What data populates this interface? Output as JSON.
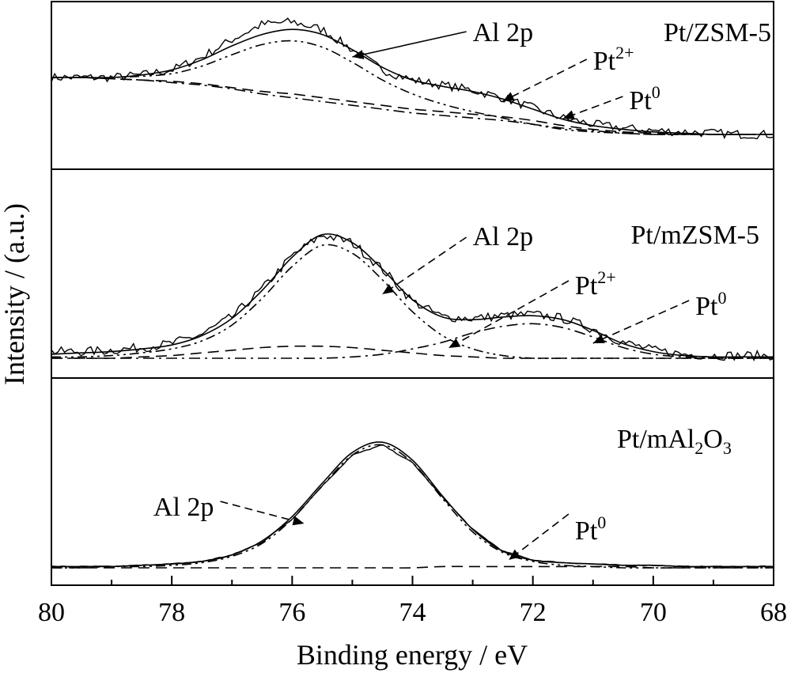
{
  "chart_data": {
    "type": "line",
    "xlabel": "Binding energy / eV",
    "ylabel": "Intensity / (a.u.)",
    "x_range": [
      80,
      68
    ],
    "x_ticks": [
      "80",
      "78",
      "76",
      "74",
      "72",
      "70",
      "68"
    ],
    "x_tick_values": [
      80,
      78,
      76,
      74,
      72,
      70,
      68
    ],
    "panels": [
      {
        "label": "Pt/ZSM-5",
        "label_main": "Pt/ZSM-5",
        "annotations": [
          {
            "base": "Al 2p",
            "sup": "",
            "x_eV": 75.0,
            "label_x_eV": 73.0
          },
          {
            "base": "Pt",
            "sup": "2+",
            "x_eV": 72.5,
            "label_x_eV": 71.0
          },
          {
            "base": "Pt",
            "sup": "0",
            "x_eV": 71.5,
            "label_x_eV": 70.4
          }
        ],
        "series": [
          {
            "role": "experimental",
            "style": "noisy",
            "values": [
              0.5,
              0.5,
              0.5,
              0.52,
              0.56,
              0.66,
              0.8,
              0.92,
              0.94,
              0.88,
              0.72,
              0.56,
              0.48,
              0.44,
              0.4,
              0.34,
              0.26,
              0.18,
              0.13,
              0.1,
              0.08,
              0.07,
              0.06,
              0.05,
              0.05
            ]
          },
          {
            "role": "envelope",
            "style": "solid",
            "values": [
              0.5,
              0.5,
              0.5,
              0.52,
              0.56,
              0.64,
              0.75,
              0.84,
              0.88,
              0.84,
              0.72,
              0.58,
              0.48,
              0.43,
              0.39,
              0.33,
              0.25,
              0.17,
              0.12,
              0.09,
              0.07,
              0.06,
              0.05,
              0.05,
              0.05
            ]
          },
          {
            "role": "Al 2p",
            "style": "dash-dot-dot",
            "values": [
              0.5,
              0.5,
              0.5,
              0.51,
              0.53,
              0.59,
              0.68,
              0.76,
              0.79,
              0.74,
              0.62,
              0.48,
              0.37,
              0.29,
              0.23,
              0.18,
              0.13,
              0.09,
              0.07,
              0.06,
              0.05,
              0.05,
              0.05,
              0.05,
              0.05
            ]
          },
          {
            "role": "Pt2+",
            "style": "dashed",
            "values": [
              0.5,
              0.5,
              0.49,
              0.48,
              0.47,
              0.45,
              0.42,
              0.39,
              0.37,
              0.34,
              0.31,
              0.28,
              0.25,
              0.23,
              0.21,
              0.19,
              0.16,
              0.12,
              0.09,
              0.07,
              0.06,
              0.05,
              0.05,
              0.05,
              0.05
            ]
          },
          {
            "role": "Pt0",
            "style": "dash-dot",
            "values": [
              0.5,
              0.5,
              0.49,
              0.48,
              0.46,
              0.44,
              0.41,
              0.37,
              0.34,
              0.31,
              0.28,
              0.25,
              0.22,
              0.2,
              0.18,
              0.16,
              0.13,
              0.1,
              0.08,
              0.06,
              0.05,
              0.05,
              0.05,
              0.05,
              0.05
            ]
          }
        ]
      },
      {
        "label": "Pt/mZSM-5",
        "label_main": "Pt/mZSM-5",
        "annotations": [
          {
            "base": "Al 2p",
            "sup": "",
            "x_eV": 74.5,
            "label_x_eV": 73.0
          },
          {
            "base": "Pt",
            "sup": "2+",
            "x_eV": 73.4,
            "label_x_eV": 71.3
          },
          {
            "base": "Pt",
            "sup": "0",
            "x_eV": 71.0,
            "label_x_eV": 69.3
          }
        ],
        "series": [
          {
            "role": "experimental",
            "style": "noisy",
            "values": [
              0.08,
              0.08,
              0.09,
              0.11,
              0.14,
              0.21,
              0.34,
              0.55,
              0.8,
              0.96,
              0.9,
              0.7,
              0.46,
              0.34,
              0.33,
              0.35,
              0.36,
              0.33,
              0.25,
              0.15,
              0.09,
              0.06,
              0.05,
              0.05,
              0.05
            ]
          },
          {
            "role": "envelope",
            "style": "solid",
            "values": [
              0.06,
              0.07,
              0.08,
              0.1,
              0.13,
              0.2,
              0.33,
              0.54,
              0.79,
              0.96,
              0.9,
              0.7,
              0.47,
              0.34,
              0.32,
              0.34,
              0.35,
              0.32,
              0.24,
              0.14,
              0.08,
              0.05,
              0.04,
              0.04,
              0.04
            ]
          },
          {
            "role": "Al 2p",
            "style": "dash-dot-dot",
            "values": [
              0.04,
              0.04,
              0.05,
              0.07,
              0.1,
              0.16,
              0.28,
              0.48,
              0.72,
              0.88,
              0.82,
              0.62,
              0.38,
              0.2,
              0.1,
              0.05,
              0.03,
              0.03,
              0.03,
              0.03,
              0.03,
              0.03,
              0.03,
              0.03,
              0.03
            ]
          },
          {
            "role": "Pt2+",
            "style": "dashed",
            "values": [
              0.03,
              0.03,
              0.03,
              0.04,
              0.05,
              0.07,
              0.09,
              0.11,
              0.12,
              0.12,
              0.11,
              0.09,
              0.07,
              0.05,
              0.04,
              0.03,
              0.03,
              0.03,
              0.03,
              0.03,
              0.03,
              0.03,
              0.03,
              0.03,
              0.03
            ]
          },
          {
            "role": "Pt0",
            "style": "dash-dot",
            "values": [
              0.03,
              0.03,
              0.03,
              0.03,
              0.03,
              0.03,
              0.03,
              0.03,
              0.03,
              0.03,
              0.04,
              0.06,
              0.1,
              0.15,
              0.22,
              0.27,
              0.29,
              0.26,
              0.19,
              0.11,
              0.06,
              0.04,
              0.03,
              0.03,
              0.03
            ]
          }
        ]
      },
      {
        "label": "Pt/mAl2O3",
        "label_main": "Pt/mAl",
        "label_sub1": "2",
        "label_mid": "O",
        "label_sub2": "3",
        "annotations": [
          {
            "base": "Al 2p",
            "sup": "",
            "x_eV": 75.8,
            "label_x_eV": 77.3
          },
          {
            "base": "Pt",
            "sup": "0",
            "x_eV": 72.4,
            "label_x_eV": 71.3
          }
        ],
        "series": [
          {
            "role": "experimental",
            "style": "noisy",
            "values": [
              0.01,
              0.01,
              0.01,
              0.02,
              0.03,
              0.05,
              0.1,
              0.2,
              0.38,
              0.64,
              0.88,
              0.96,
              0.82,
              0.55,
              0.3,
              0.13,
              0.06,
              0.04,
              0.03,
              0.02,
              0.02,
              0.01,
              0.01,
              0.01,
              0.01
            ]
          },
          {
            "role": "envelope",
            "style": "solid",
            "values": [
              0.01,
              0.01,
              0.01,
              0.02,
              0.03,
              0.05,
              0.1,
              0.21,
              0.4,
              0.66,
              0.9,
              0.98,
              0.84,
              0.56,
              0.3,
              0.13,
              0.06,
              0.04,
              0.03,
              0.02,
              0.02,
              0.01,
              0.01,
              0.01,
              0.01
            ]
          },
          {
            "role": "Al 2p",
            "style": "dash-dot-dot",
            "values": [
              0.0,
              0.0,
              0.01,
              0.01,
              0.02,
              0.04,
              0.09,
              0.19,
              0.38,
              0.64,
              0.88,
              0.96,
              0.82,
              0.54,
              0.28,
              0.12,
              0.05,
              0.02,
              0.01,
              0.0,
              0.0,
              0.0,
              0.0,
              0.0,
              0.0
            ]
          },
          {
            "role": "Pt0",
            "style": "dashed",
            "values": [
              0.0,
              0.0,
              0.0,
              0.0,
              0.0,
              0.0,
              0.0,
              0.0,
              0.0,
              0.0,
              0.0,
              0.0,
              0.0,
              0.01,
              0.01,
              0.01,
              0.01,
              0.01,
              0.01,
              0.01,
              0.0,
              0.0,
              0.0,
              0.0,
              0.0
            ]
          }
        ]
      }
    ],
    "x_samples": [
      80,
      79.5,
      79,
      78.5,
      78,
      77.5,
      77,
      76.5,
      76,
      75.5,
      75,
      74.5,
      74,
      73.5,
      73,
      72.5,
      72,
      71.5,
      71,
      70.5,
      70,
      69.5,
      69,
      68.5,
      68
    ]
  }
}
